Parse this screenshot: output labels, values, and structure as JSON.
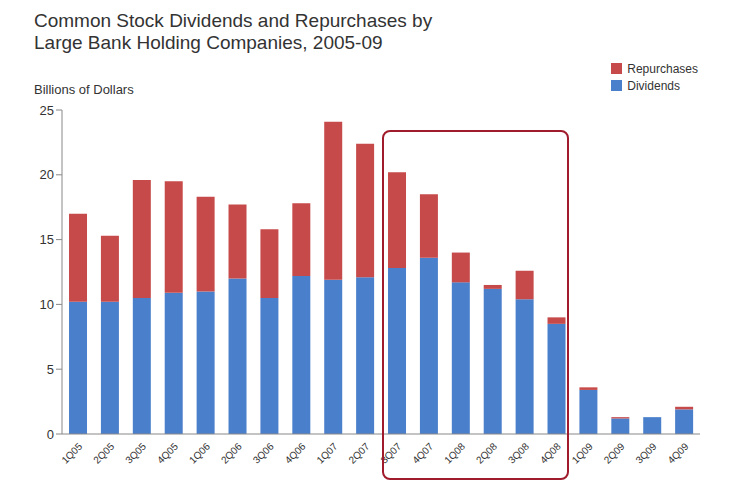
{
  "chart_data": {
    "type": "bar",
    "title": "Common Stock Dividends and Repurchases by Large Bank Holding Companies, 2005-09",
    "y_label": "Billions of Dollars",
    "categories": [
      "1Q05",
      "2Q05",
      "3Q05",
      "4Q05",
      "1Q06",
      "2Q06",
      "3Q06",
      "4Q06",
      "1Q07",
      "2Q07",
      "3Q07",
      "4Q07",
      "1Q08",
      "2Q08",
      "3Q08",
      "4Q08",
      "1Q09",
      "2Q09",
      "3Q09",
      "4Q09"
    ],
    "series": [
      {
        "name": "Dividends",
        "color": "#4a7fcb",
        "values": [
          10.2,
          10.2,
          10.5,
          10.9,
          11.0,
          12.0,
          10.5,
          12.2,
          11.9,
          12.1,
          12.8,
          13.6,
          11.7,
          11.2,
          10.4,
          8.5,
          3.4,
          1.2,
          1.3,
          1.9
        ]
      },
      {
        "name": "Repurchases",
        "color": "#c74a4a",
        "values": [
          6.8,
          5.1,
          9.1,
          8.6,
          7.3,
          5.7,
          5.3,
          5.6,
          12.2,
          10.3,
          7.4,
          4.9,
          2.3,
          0.3,
          2.2,
          0.5,
          0.2,
          0.1,
          0,
          0.2
        ]
      }
    ],
    "ylim": [
      0,
      25
    ],
    "yticks": [
      0,
      5,
      10,
      15,
      20,
      25
    ],
    "stacked": true,
    "grid": false,
    "legend": "top right"
  }
}
